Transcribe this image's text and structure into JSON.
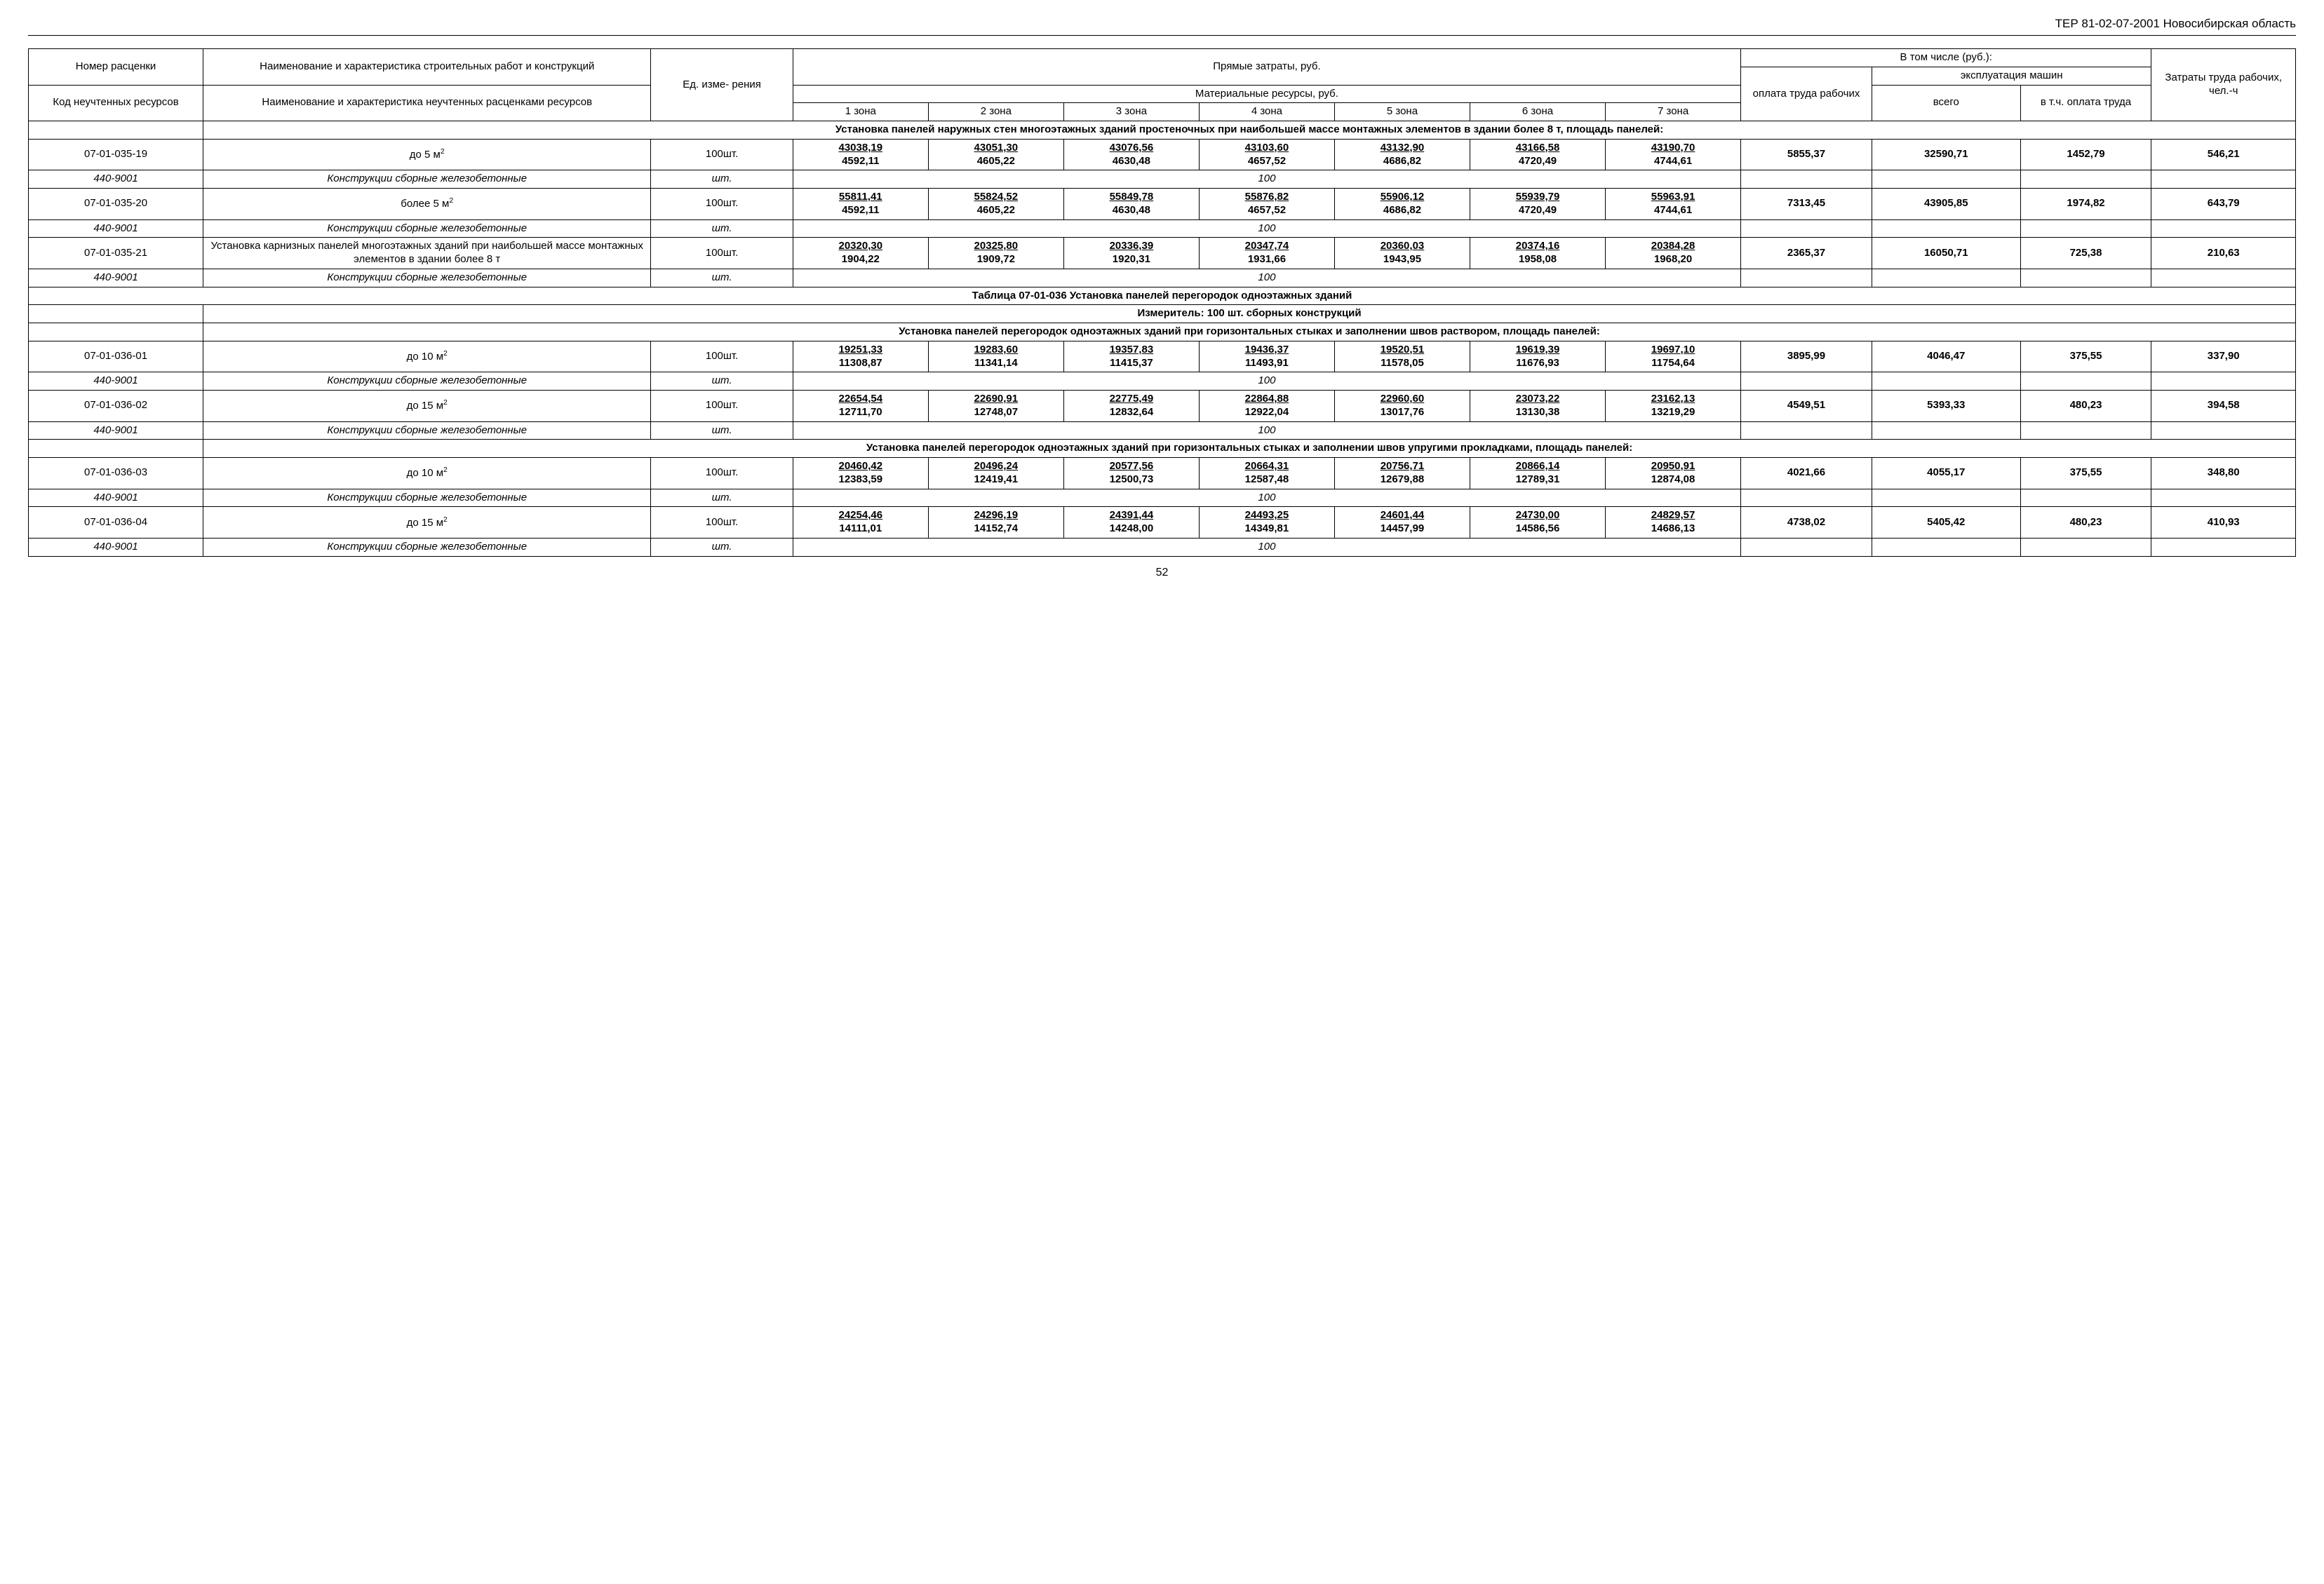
{
  "page": {
    "header_right": "ТЕР 81-02-07-2001  Новосибирская область",
    "page_number": "52"
  },
  "columns": {
    "widths_pct": [
      8,
      20.5,
      6.5,
      6.2,
      6.2,
      6.2,
      6.2,
      6.2,
      6.2,
      6.2,
      6,
      6.8,
      6,
      6.6
    ]
  },
  "thead": {
    "h1_c1": "Номер расценки",
    "h1_c2": "Наименование и характеристика строительных работ и конструкций",
    "h1_unit": "Ед. изме-\nрения",
    "h1_direct": "Прямые затраты, руб.",
    "h1_incl": "В том числе (руб.):",
    "h1_labor": "Затраты труда рабочих, чел.-ч",
    "h2_c1": "Код неучтенных ресурсов",
    "h2_c2": "Наименование и характеристика неучтенных расценками ресурсов",
    "h2_mat": "Материальные ресурсы, руб.",
    "h2_wage": "оплата труда рабочих",
    "h2_mach": "эксплуатация машин",
    "h3_z1": "1 зона",
    "h3_z2": "2 зона",
    "h3_z3": "3 зона",
    "h3_z4": "4 зона",
    "h3_z5": "5 зона",
    "h3_z6": "6 зона",
    "h3_z7": "7 зона",
    "h3_total": "всего",
    "h3_oplata": "в т.ч. оплата труда"
  },
  "rows": [
    {
      "type": "desc",
      "text": "Установка панелей наружных стен многоэтажных зданий простеночных при наибольшей массе монтажных элементов в здании более 8 т, площадь панелей:"
    },
    {
      "type": "data",
      "code": "07-01-035-19",
      "name_html": "до 5 м<sup>2</sup>",
      "unit": "100шт.",
      "z": [
        [
          "43038,19",
          "4592,11"
        ],
        [
          "43051,30",
          "4605,22"
        ],
        [
          "43076,56",
          "4630,48"
        ],
        [
          "43103,60",
          "4657,52"
        ],
        [
          "43132,90",
          "4686,82"
        ],
        [
          "43166,58",
          "4720,49"
        ],
        [
          "43190,70",
          "4744,61"
        ]
      ],
      "wage": "5855,37",
      "total": "32590,71",
      "oplata": "1452,79",
      "labor": "546,21"
    },
    {
      "type": "res",
      "code": "440-9001",
      "name": "Конструкции сборные железобетонные",
      "unit": "шт.",
      "qty": "100"
    },
    {
      "type": "data",
      "code": "07-01-035-20",
      "name_html": "более 5 м<sup>2</sup>",
      "unit": "100шт.",
      "z": [
        [
          "55811,41",
          "4592,11"
        ],
        [
          "55824,52",
          "4605,22"
        ],
        [
          "55849,78",
          "4630,48"
        ],
        [
          "55876,82",
          "4657,52"
        ],
        [
          "55906,12",
          "4686,82"
        ],
        [
          "55939,79",
          "4720,49"
        ],
        [
          "55963,91",
          "4744,61"
        ]
      ],
      "wage": "7313,45",
      "total": "43905,85",
      "oplata": "1974,82",
      "labor": "643,79"
    },
    {
      "type": "res",
      "code": "440-9001",
      "name": "Конструкции сборные железобетонные",
      "unit": "шт.",
      "qty": "100"
    },
    {
      "type": "data",
      "code": "07-01-035-21",
      "name_html": "Установка карнизных панелей многоэтажных зданий при наибольшей массе монтажных элементов в здании более 8 т",
      "unit": "100шт.",
      "z": [
        [
          "20320,30",
          "1904,22"
        ],
        [
          "20325,80",
          "1909,72"
        ],
        [
          "20336,39",
          "1920,31"
        ],
        [
          "20347,74",
          "1931,66"
        ],
        [
          "20360,03",
          "1943,95"
        ],
        [
          "20374,16",
          "1958,08"
        ],
        [
          "20384,28",
          "1968,20"
        ]
      ],
      "wage": "2365,37",
      "total": "16050,71",
      "oplata": "725,38",
      "labor": "210,63"
    },
    {
      "type": "res",
      "code": "440-9001",
      "name": "Конструкции сборные железобетонные",
      "unit": "шт.",
      "qty": "100"
    },
    {
      "type": "section",
      "text": "Таблица 07-01-036 Установка панелей перегородок одноэтажных зданий"
    },
    {
      "type": "measurer",
      "text": "Измеритель: 100 шт. сборных конструкций"
    },
    {
      "type": "desc",
      "text": "Установка панелей перегородок одноэтажных зданий при горизонтальных стыках и заполнении швов раствором, площадь панелей:"
    },
    {
      "type": "data",
      "code": "07-01-036-01",
      "name_html": "до 10 м<sup>2</sup>",
      "unit": "100шт.",
      "z": [
        [
          "19251,33",
          "11308,87"
        ],
        [
          "19283,60",
          "11341,14"
        ],
        [
          "19357,83",
          "11415,37"
        ],
        [
          "19436,37",
          "11493,91"
        ],
        [
          "19520,51",
          "11578,05"
        ],
        [
          "19619,39",
          "11676,93"
        ],
        [
          "19697,10",
          "11754,64"
        ]
      ],
      "wage": "3895,99",
      "total": "4046,47",
      "oplata": "375,55",
      "labor": "337,90"
    },
    {
      "type": "res",
      "code": "440-9001",
      "name": "Конструкции сборные железобетонные",
      "unit": "шт.",
      "qty": "100"
    },
    {
      "type": "data",
      "code": "07-01-036-02",
      "name_html": "до 15 м<sup>2</sup>",
      "unit": "100шт.",
      "z": [
        [
          "22654,54",
          "12711,70"
        ],
        [
          "22690,91",
          "12748,07"
        ],
        [
          "22775,49",
          "12832,64"
        ],
        [
          "22864,88",
          "12922,04"
        ],
        [
          "22960,60",
          "13017,76"
        ],
        [
          "23073,22",
          "13130,38"
        ],
        [
          "23162,13",
          "13219,29"
        ]
      ],
      "wage": "4549,51",
      "total": "5393,33",
      "oplata": "480,23",
      "labor": "394,58"
    },
    {
      "type": "res",
      "code": "440-9001",
      "name": "Конструкции сборные железобетонные",
      "unit": "шт.",
      "qty": "100"
    },
    {
      "type": "desc",
      "text": "Установка панелей перегородок одноэтажных зданий при горизонтальных стыках и заполнении швов упругими прокладками, площадь панелей:"
    },
    {
      "type": "data",
      "code": "07-01-036-03",
      "name_html": "до 10 м<sup>2</sup>",
      "unit": "100шт.",
      "z": [
        [
          "20460,42",
          "12383,59"
        ],
        [
          "20496,24",
          "12419,41"
        ],
        [
          "20577,56",
          "12500,73"
        ],
        [
          "20664,31",
          "12587,48"
        ],
        [
          "20756,71",
          "12679,88"
        ],
        [
          "20866,14",
          "12789,31"
        ],
        [
          "20950,91",
          "12874,08"
        ]
      ],
      "wage": "4021,66",
      "total": "4055,17",
      "oplata": "375,55",
      "labor": "348,80"
    },
    {
      "type": "res",
      "code": "440-9001",
      "name": "Конструкции сборные железобетонные",
      "unit": "шт.",
      "qty": "100"
    },
    {
      "type": "data",
      "code": "07-01-036-04",
      "name_html": "до 15 м<sup>2</sup>",
      "unit": "100шт.",
      "z": [
        [
          "24254,46",
          "14111,01"
        ],
        [
          "24296,19",
          "14152,74"
        ],
        [
          "24391,44",
          "14248,00"
        ],
        [
          "24493,25",
          "14349,81"
        ],
        [
          "24601,44",
          "14457,99"
        ],
        [
          "24730,00",
          "14586,56"
        ],
        [
          "24829,57",
          "14686,13"
        ]
      ],
      "wage": "4738,02",
      "total": "5405,42",
      "oplata": "480,23",
      "labor": "410,93"
    },
    {
      "type": "res",
      "code": "440-9001",
      "name": "Конструкции сборные железобетонные",
      "unit": "шт.",
      "qty": "100"
    }
  ]
}
